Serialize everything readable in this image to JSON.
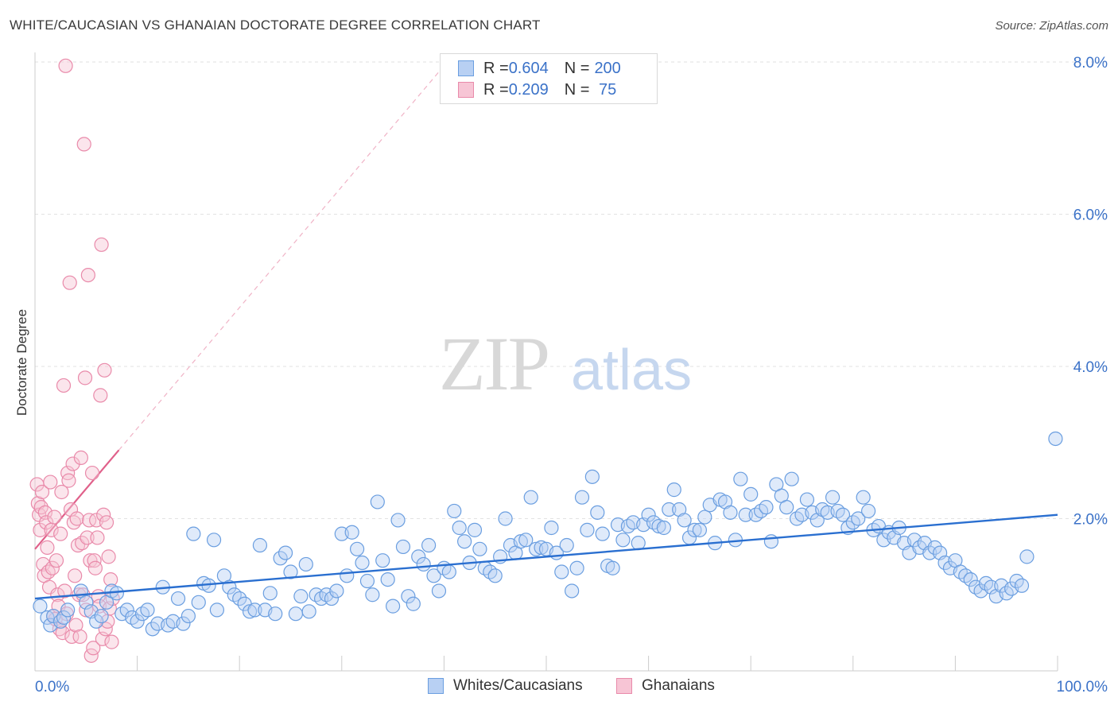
{
  "title": "WHITE/CAUCASIAN VS GHANAIAN DOCTORATE DEGREE CORRELATION CHART",
  "source": "Source: ZipAtlas.com",
  "watermark": {
    "zip": "ZIP",
    "atlas": "atlas"
  },
  "colors": {
    "blue": "#6a9ee0",
    "blue_fill": "#b8d0f3",
    "blue_line": "#2a6fd0",
    "pink": "#e98aaa",
    "pink_fill": "#f7c5d5",
    "pink_line": "#e0608a",
    "axis_text": "#3b72c8"
  },
  "legend_top": [
    {
      "r_label": "R = ",
      "r_value": "0.604",
      "n_label": "N = ",
      "n_value": "200",
      "series": "blue"
    },
    {
      "r_label": "R = ",
      "r_value": "0.209",
      "n_label": "N = ",
      "n_value": " 75",
      "series": "pink"
    }
  ],
  "legend_bottom": [
    {
      "label": "Whites/Caucasians",
      "series": "blue"
    },
    {
      "label": "Ghanaians",
      "series": "pink"
    }
  ],
  "chart_data": {
    "type": "scatter",
    "title": "WHITE/CAUCASIAN VS GHANAIAN DOCTORATE DEGREE CORRELATION CHART",
    "xlabel": "",
    "ylabel": "Doctorate Degree",
    "xlim": [
      0,
      100
    ],
    "ylim": [
      0,
      8.0
    ],
    "x_tick_labels": [
      "0.0%",
      "100.0%"
    ],
    "y_ticks": [
      2,
      4,
      6,
      8
    ],
    "y_tick_labels": [
      "2.0%",
      "4.0%",
      "6.0%",
      "8.0%"
    ],
    "grid": true,
    "legend_position": "top-center",
    "series": [
      {
        "name": "Whites/Caucasians",
        "color": "#6a9ee0",
        "trend": {
          "x": [
            0,
            100
          ],
          "y": [
            0.95,
            2.05
          ]
        },
        "points": [
          [
            0.5,
            0.85
          ],
          [
            1.2,
            0.7
          ],
          [
            1.5,
            0.6
          ],
          [
            1.8,
            0.72
          ],
          [
            2.5,
            0.65
          ],
          [
            2.8,
            0.7
          ],
          [
            3.2,
            0.8
          ],
          [
            4.5,
            1.05
          ],
          [
            5.0,
            0.9
          ],
          [
            5.5,
            0.78
          ],
          [
            6.0,
            0.65
          ],
          [
            6.5,
            0.72
          ],
          [
            7.0,
            0.9
          ],
          [
            7.5,
            1.05
          ],
          [
            8.0,
            1.02
          ],
          [
            8.5,
            0.75
          ],
          [
            9.0,
            0.8
          ],
          [
            9.5,
            0.7
          ],
          [
            10.0,
            0.65
          ],
          [
            10.5,
            0.75
          ],
          [
            11.0,
            0.8
          ],
          [
            11.5,
            0.55
          ],
          [
            12.0,
            0.62
          ],
          [
            12.5,
            1.1
          ],
          [
            13.0,
            0.6
          ],
          [
            13.5,
            0.65
          ],
          [
            14.0,
            0.95
          ],
          [
            14.5,
            0.62
          ],
          [
            15.0,
            0.72
          ],
          [
            15.5,
            1.8
          ],
          [
            16.0,
            0.9
          ],
          [
            16.5,
            1.15
          ],
          [
            17.0,
            1.12
          ],
          [
            17.5,
            1.72
          ],
          [
            17.8,
            0.8
          ],
          [
            18.5,
            1.25
          ],
          [
            19.0,
            1.1
          ],
          [
            19.5,
            1.0
          ],
          [
            20.0,
            0.95
          ],
          [
            20.5,
            0.88
          ],
          [
            21.0,
            0.78
          ],
          [
            21.5,
            0.8
          ],
          [
            22.0,
            1.65
          ],
          [
            22.5,
            0.8
          ],
          [
            23.0,
            1.02
          ],
          [
            23.5,
            0.75
          ],
          [
            24.0,
            1.48
          ],
          [
            24.5,
            1.55
          ],
          [
            25.0,
            1.3
          ],
          [
            25.5,
            0.75
          ],
          [
            26.0,
            0.98
          ],
          [
            26.5,
            1.4
          ],
          [
            26.8,
            0.78
          ],
          [
            27.5,
            1.0
          ],
          [
            28.0,
            0.95
          ],
          [
            28.5,
            1.0
          ],
          [
            29.0,
            0.95
          ],
          [
            29.5,
            1.05
          ],
          [
            30.0,
            1.8
          ],
          [
            30.5,
            1.25
          ],
          [
            31.0,
            1.82
          ],
          [
            31.5,
            1.6
          ],
          [
            32.0,
            1.42
          ],
          [
            32.5,
            1.18
          ],
          [
            33.0,
            1.0
          ],
          [
            33.5,
            2.22
          ],
          [
            34.0,
            1.45
          ],
          [
            34.5,
            1.2
          ],
          [
            35.0,
            0.85
          ],
          [
            35.5,
            1.98
          ],
          [
            36.0,
            1.63
          ],
          [
            36.5,
            0.98
          ],
          [
            37.0,
            0.88
          ],
          [
            37.5,
            1.5
          ],
          [
            38.0,
            1.4
          ],
          [
            38.5,
            1.65
          ],
          [
            39.0,
            1.25
          ],
          [
            39.5,
            1.05
          ],
          [
            40.0,
            1.35
          ],
          [
            40.5,
            1.3
          ],
          [
            41.0,
            2.1
          ],
          [
            41.5,
            1.88
          ],
          [
            42.0,
            1.7
          ],
          [
            42.5,
            1.42
          ],
          [
            43.0,
            1.85
          ],
          [
            43.5,
            1.6
          ],
          [
            44.0,
            1.35
          ],
          [
            44.5,
            1.3
          ],
          [
            45.0,
            1.25
          ],
          [
            45.5,
            1.5
          ],
          [
            46.0,
            2.0
          ],
          [
            46.5,
            1.65
          ],
          [
            47.0,
            1.55
          ],
          [
            47.5,
            1.7
          ],
          [
            48.0,
            1.72
          ],
          [
            48.5,
            2.28
          ],
          [
            49.0,
            1.6
          ],
          [
            49.5,
            1.62
          ],
          [
            50.0,
            1.6
          ],
          [
            50.5,
            1.88
          ],
          [
            51.0,
            1.55
          ],
          [
            51.5,
            1.3
          ],
          [
            52.0,
            1.65
          ],
          [
            52.5,
            1.05
          ],
          [
            53.0,
            1.35
          ],
          [
            53.5,
            2.28
          ],
          [
            54.0,
            1.85
          ],
          [
            54.5,
            2.55
          ],
          [
            55.0,
            2.08
          ],
          [
            55.5,
            1.8
          ],
          [
            56.0,
            1.38
          ],
          [
            56.5,
            1.35
          ],
          [
            57.0,
            1.92
          ],
          [
            57.5,
            1.72
          ],
          [
            58.0,
            1.9
          ],
          [
            58.5,
            1.95
          ],
          [
            59.0,
            1.68
          ],
          [
            59.5,
            1.92
          ],
          [
            60.0,
            2.05
          ],
          [
            60.5,
            1.95
          ],
          [
            61.0,
            1.9
          ],
          [
            61.5,
            1.88
          ],
          [
            62.0,
            2.12
          ],
          [
            62.5,
            2.38
          ],
          [
            63.0,
            2.12
          ],
          [
            63.5,
            1.98
          ],
          [
            64.0,
            1.75
          ],
          [
            64.5,
            1.85
          ],
          [
            65.0,
            1.85
          ],
          [
            65.5,
            2.02
          ],
          [
            66.0,
            2.18
          ],
          [
            66.5,
            1.68
          ],
          [
            67.0,
            2.25
          ],
          [
            67.5,
            2.22
          ],
          [
            68.0,
            2.08
          ],
          [
            68.5,
            1.72
          ],
          [
            69.0,
            2.52
          ],
          [
            69.5,
            2.05
          ],
          [
            70.0,
            2.32
          ],
          [
            70.5,
            2.05
          ],
          [
            71.0,
            2.1
          ],
          [
            71.5,
            2.15
          ],
          [
            72.0,
            1.7
          ],
          [
            72.5,
            2.45
          ],
          [
            73.0,
            2.3
          ],
          [
            73.5,
            2.15
          ],
          [
            74.0,
            2.52
          ],
          [
            74.5,
            2.0
          ],
          [
            75.0,
            2.05
          ],
          [
            75.5,
            2.25
          ],
          [
            76.0,
            2.08
          ],
          [
            76.5,
            1.98
          ],
          [
            77.0,
            2.12
          ],
          [
            77.5,
            2.08
          ],
          [
            78.0,
            2.28
          ],
          [
            78.5,
            2.1
          ],
          [
            79.0,
            2.05
          ],
          [
            79.5,
            1.88
          ],
          [
            80.0,
            1.95
          ],
          [
            80.5,
            2.0
          ],
          [
            81.0,
            2.28
          ],
          [
            81.5,
            2.1
          ],
          [
            82.0,
            1.85
          ],
          [
            82.5,
            1.9
          ],
          [
            83.0,
            1.72
          ],
          [
            83.5,
            1.82
          ],
          [
            84.0,
            1.75
          ],
          [
            84.5,
            1.88
          ],
          [
            85.0,
            1.68
          ],
          [
            85.5,
            1.55
          ],
          [
            86.0,
            1.72
          ],
          [
            86.5,
            1.62
          ],
          [
            87.0,
            1.68
          ],
          [
            87.5,
            1.55
          ],
          [
            88.0,
            1.62
          ],
          [
            88.5,
            1.55
          ],
          [
            89.0,
            1.42
          ],
          [
            89.5,
            1.35
          ],
          [
            90.0,
            1.45
          ],
          [
            90.5,
            1.3
          ],
          [
            91.0,
            1.25
          ],
          [
            91.5,
            1.2
          ],
          [
            92.0,
            1.1
          ],
          [
            92.5,
            1.05
          ],
          [
            93.0,
            1.15
          ],
          [
            93.5,
            1.1
          ],
          [
            94.0,
            0.98
          ],
          [
            94.5,
            1.12
          ],
          [
            95.0,
            1.02
          ],
          [
            95.5,
            1.08
          ],
          [
            96.0,
            1.18
          ],
          [
            96.5,
            1.12
          ],
          [
            97.0,
            1.5
          ],
          [
            99.8,
            3.05
          ]
        ]
      },
      {
        "name": "Ghanaians",
        "color": "#e98aaa",
        "trend": {
          "x": [
            0,
            8.2
          ],
          "y": [
            1.6,
            2.9
          ]
        },
        "trend_extended": {
          "x": [
            8.2,
            40
          ],
          "y": [
            2.9,
            7.95
          ]
        },
        "points": [
          [
            0.2,
            2.45
          ],
          [
            0.3,
            2.2
          ],
          [
            0.4,
            2.05
          ],
          [
            0.5,
            1.85
          ],
          [
            0.6,
            2.15
          ],
          [
            0.7,
            2.35
          ],
          [
            0.8,
            1.4
          ],
          [
            0.9,
            1.25
          ],
          [
            1.0,
            2.08
          ],
          [
            1.1,
            1.95
          ],
          [
            1.2,
            1.62
          ],
          [
            1.3,
            1.3
          ],
          [
            1.4,
            1.1
          ],
          [
            1.5,
            2.48
          ],
          [
            1.6,
            1.85
          ],
          [
            1.7,
            1.35
          ],
          [
            1.8,
            0.72
          ],
          [
            1.9,
            2.02
          ],
          [
            2.0,
            0.68
          ],
          [
            2.1,
            1.45
          ],
          [
            2.2,
            1.0
          ],
          [
            2.3,
            0.85
          ],
          [
            2.4,
            0.55
          ],
          [
            2.5,
            1.8
          ],
          [
            2.6,
            2.35
          ],
          [
            2.7,
            0.5
          ],
          [
            2.8,
            3.75
          ],
          [
            2.9,
            1.05
          ],
          [
            3.0,
            7.95
          ],
          [
            3.1,
            0.75
          ],
          [
            3.2,
            2.6
          ],
          [
            3.3,
            2.5
          ],
          [
            3.4,
            5.1
          ],
          [
            3.5,
            2.12
          ],
          [
            3.6,
            0.45
          ],
          [
            3.7,
            2.72
          ],
          [
            3.8,
            1.95
          ],
          [
            3.9,
            1.25
          ],
          [
            4.0,
            0.6
          ],
          [
            4.1,
            2.0
          ],
          [
            4.2,
            1.65
          ],
          [
            4.3,
            1.0
          ],
          [
            4.4,
            0.45
          ],
          [
            4.5,
            2.8
          ],
          [
            4.6,
            1.68
          ],
          [
            4.7,
            1.0
          ],
          [
            4.8,
            6.92
          ],
          [
            4.9,
            3.85
          ],
          [
            5.0,
            0.8
          ],
          [
            5.1,
            1.75
          ],
          [
            5.2,
            5.2
          ],
          [
            5.3,
            1.98
          ],
          [
            5.4,
            1.45
          ],
          [
            5.5,
            0.2
          ],
          [
            5.6,
            2.6
          ],
          [
            5.7,
            0.3
          ],
          [
            5.8,
            1.45
          ],
          [
            5.9,
            1.35
          ],
          [
            6.0,
            1.98
          ],
          [
            6.1,
            1.75
          ],
          [
            6.2,
            0.98
          ],
          [
            6.3,
            0.85
          ],
          [
            6.4,
            3.62
          ],
          [
            6.5,
            5.6
          ],
          [
            6.6,
            0.42
          ],
          [
            6.7,
            2.05
          ],
          [
            6.8,
            3.95
          ],
          [
            6.9,
            0.55
          ],
          [
            7.0,
            1.95
          ],
          [
            7.1,
            0.65
          ],
          [
            7.2,
            1.5
          ],
          [
            7.3,
            0.82
          ],
          [
            7.4,
            1.2
          ],
          [
            7.5,
            0.38
          ],
          [
            7.6,
            0.95
          ]
        ]
      }
    ]
  }
}
